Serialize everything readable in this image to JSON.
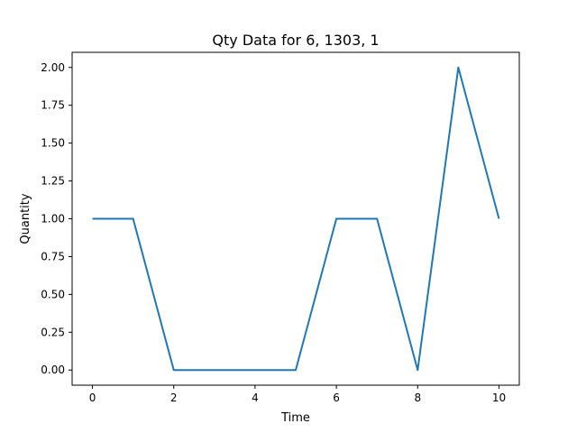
{
  "chart_data": {
    "type": "line",
    "title": "Qty Data for 6, 1303, 1",
    "xlabel": "Time",
    "ylabel": "Quantity",
    "x": [
      0,
      1,
      2,
      3,
      4,
      5,
      6,
      7,
      8,
      9,
      10
    ],
    "series": [
      {
        "values": [
          1,
          1,
          0,
          0,
          0,
          0,
          1,
          1,
          0,
          2,
          1
        ],
        "color": "#1f77b4"
      }
    ],
    "xlim": [
      -0.5,
      10.5
    ],
    "ylim": [
      -0.1,
      2.1
    ],
    "xticks": [
      0,
      2,
      4,
      6,
      8,
      10
    ],
    "xtick_labels": [
      "0",
      "2",
      "4",
      "6",
      "8",
      "10"
    ],
    "yticks": [
      0,
      0.25,
      0.5,
      0.75,
      1.0,
      1.25,
      1.5,
      1.75,
      2.0
    ],
    "ytick_labels": [
      "0.00",
      "0.25",
      "0.50",
      "0.75",
      "1.00",
      "1.25",
      "1.50",
      "1.75",
      "2.00"
    ],
    "grid": false,
    "legend": false
  }
}
